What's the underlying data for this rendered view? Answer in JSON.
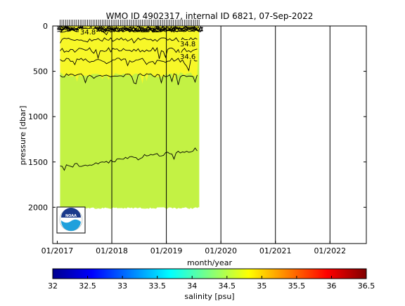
{
  "chart_data": {
    "type": "heatmap",
    "title": "WMO ID 4902317, internal ID 6821, 07-Sep-2022",
    "xlabel": "month/year",
    "ylabel": "pressure [dbar]",
    "x_ticks": [
      "01/2017",
      "01/2018",
      "01/2019",
      "01/2020",
      "01/2021",
      "01/2022"
    ],
    "y_ticks": [
      0,
      500,
      1000,
      1500,
      2000
    ],
    "ylim": [
      2400,
      0
    ],
    "xlim": [
      "2016-12",
      "2022-09"
    ],
    "colorbar": {
      "label": "salinity [psu]",
      "ticks": [
        32,
        32.5,
        33,
        33.5,
        34,
        34.5,
        35,
        35.5,
        36,
        36.5
      ],
      "range": [
        32,
        36.5
      ]
    },
    "data_coverage": {
      "start": "2017-01",
      "end": "2019-07",
      "max_pressure": 2000
    },
    "contour_labels": [
      "34.8",
      "34.8",
      "34.6"
    ],
    "logo": "NOAA",
    "colors": {
      "upper_layer": "#f7f728",
      "lower_layer": "#c3f244",
      "background": "#ffffff"
    }
  }
}
